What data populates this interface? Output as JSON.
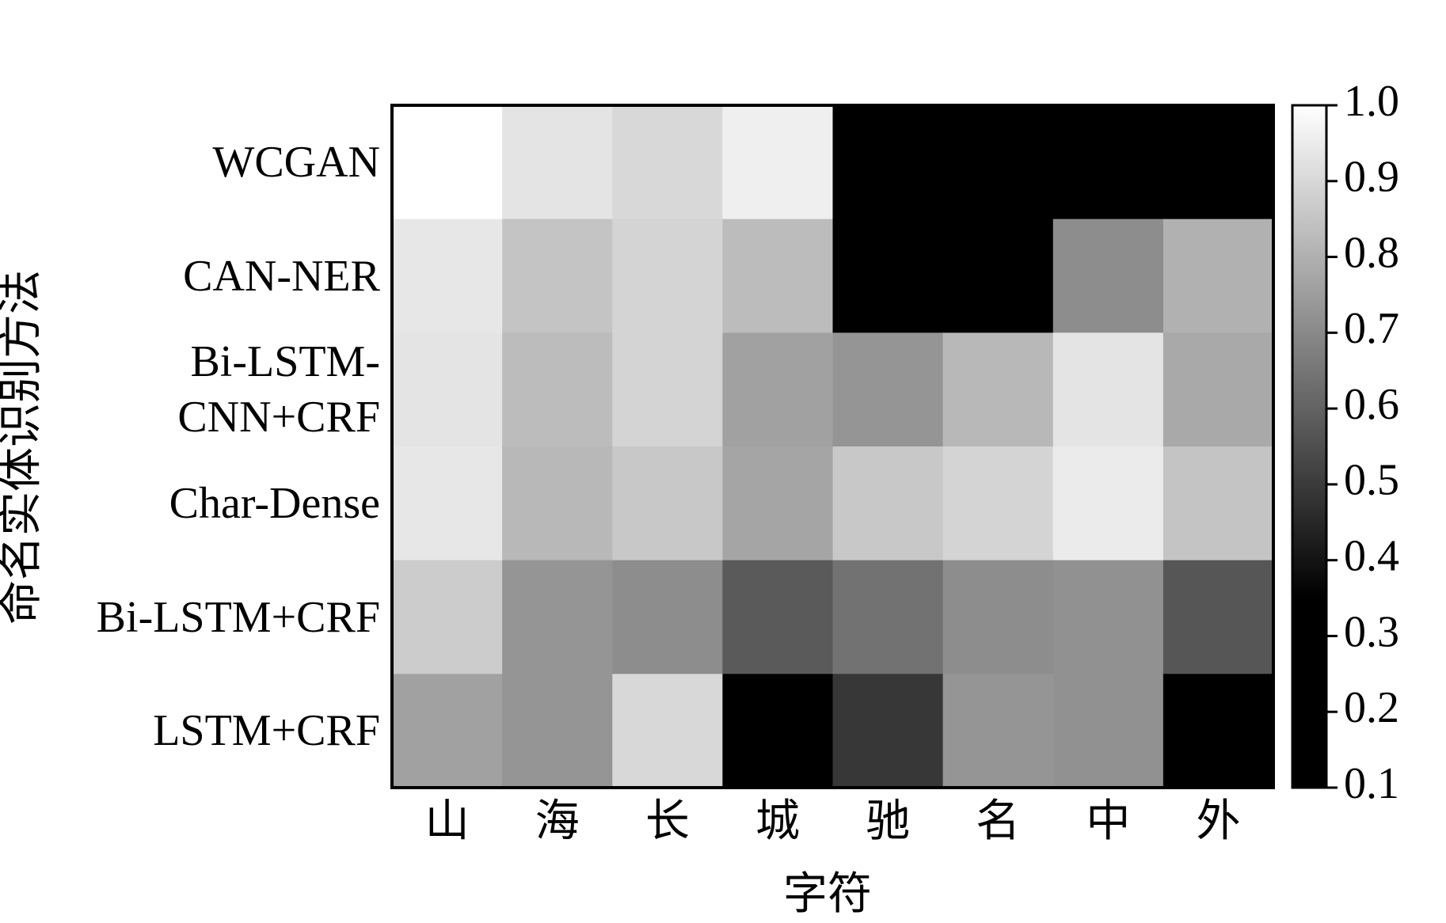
{
  "chart_data": {
    "type": "heatmap",
    "x_label": "字符",
    "y_label": "命名实体识别方法",
    "categories": [
      "山",
      "海",
      "长",
      "城",
      "驰",
      "名",
      "中",
      "外"
    ],
    "rows": [
      "WCGAN",
      "CAN-NER",
      "Bi-LSTM-\nCNN+CRF",
      "Char-Dense",
      "Bi-LSTM+CRF",
      "LSTM+CRF"
    ],
    "values": [
      [
        1.0,
        0.93,
        0.9,
        0.96,
        0.2,
        0.2,
        0.2,
        0.2
      ],
      [
        0.94,
        0.85,
        0.89,
        0.83,
        0.2,
        0.2,
        0.71,
        0.8
      ],
      [
        0.93,
        0.83,
        0.89,
        0.76,
        0.73,
        0.82,
        0.93,
        0.78
      ],
      [
        0.94,
        0.82,
        0.86,
        0.77,
        0.86,
        0.89,
        0.95,
        0.85
      ],
      [
        0.87,
        0.73,
        0.71,
        0.58,
        0.64,
        0.71,
        0.72,
        0.57
      ],
      [
        0.76,
        0.73,
        0.9,
        0.2,
        0.49,
        0.73,
        0.72,
        0.2
      ]
    ],
    "clim": [
      0.1,
      1.0
    ],
    "cticks": [
      0.1,
      0.2,
      0.3,
      0.4,
      0.5,
      0.6,
      0.7,
      0.8,
      0.9,
      {
        "value": 1.0,
        "label": "1.0"
      }
    ],
    "colormap": [
      {
        "value": 0.1,
        "color": "#000000"
      },
      {
        "value": 0.35,
        "color": "#000000"
      },
      {
        "value": 1.0,
        "color": "#ffffff"
      }
    ]
  }
}
